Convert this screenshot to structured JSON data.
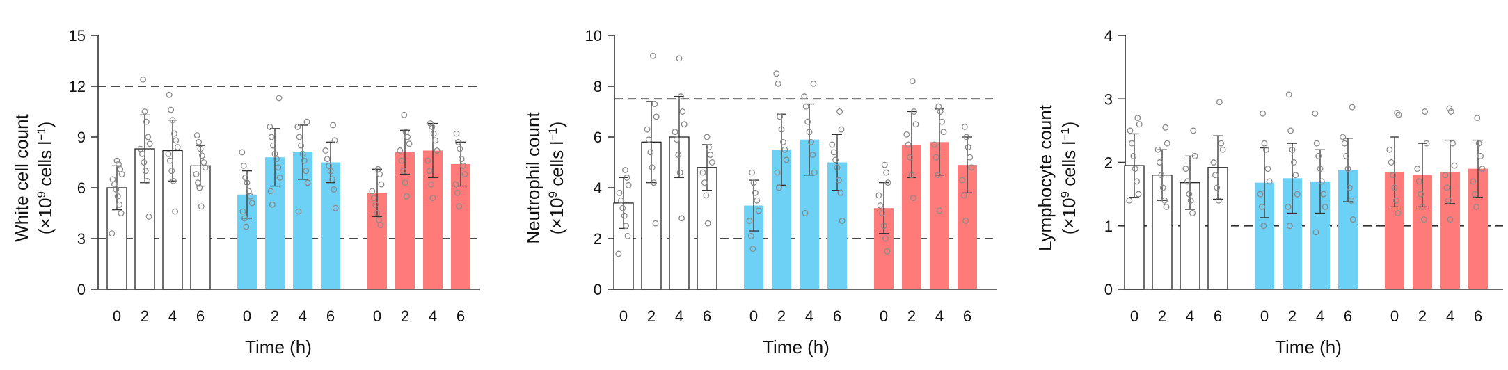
{
  "colors": {
    "control": "#ffffff",
    "control_stroke": "#222222",
    "blue": "#6dd0f5",
    "red": "#fe7b79",
    "point": "#8a8a8a",
    "axis": "#333333",
    "threshold": "#333333"
  },
  "chart_data": [
    {
      "type": "bar",
      "ylabel_line1": "White cell count",
      "ylabel_line2": "(×10",
      "ylabel_sup1": "9",
      "ylabel_mid": " cells l",
      "ylabel_sup2": "−1",
      "ylabel_end": ")",
      "xlabel": "Time (h)",
      "ylim": [
        0,
        15
      ],
      "yticks": [
        0,
        3,
        6,
        9,
        12,
        15
      ],
      "ytick_labels": [
        "0",
        "3",
        "6",
        "9",
        "12",
        "15"
      ],
      "thresholds": [
        12,
        3
      ],
      "groups": [
        {
          "color": "control",
          "bars": [
            {
              "x": "0",
              "mean": 6.0,
              "sd": 1.3,
              "points": [
                3.3,
                4.5,
                5.0,
                5.5,
                5.9,
                6.2,
                6.5,
                6.8,
                7.1,
                7.4,
                7.6
              ]
            },
            {
              "x": "2",
              "mean": 8.3,
              "sd": 2.0,
              "points": [
                4.3,
                6.4,
                7.0,
                7.5,
                8.0,
                8.3,
                8.6,
                9.0,
                9.9,
                10.5,
                12.4
              ]
            },
            {
              "x": "4",
              "mean": 8.2,
              "sd": 1.8,
              "points": [
                4.6,
                6.4,
                7.0,
                7.6,
                8.0,
                8.4,
                8.8,
                9.2,
                10.0,
                10.6,
                11.5
              ]
            },
            {
              "x": "6",
              "mean": 7.3,
              "sd": 1.2,
              "points": [
                4.9,
                6.0,
                6.3,
                6.8,
                7.2,
                7.5,
                7.9,
                8.3,
                8.7,
                9.1
              ]
            }
          ]
        },
        {
          "color": "blue",
          "bars": [
            {
              "x": "0",
              "mean": 5.6,
              "sd": 1.4,
              "points": [
                3.7,
                4.2,
                4.6,
                5.1,
                5.5,
                5.8,
                6.3,
                6.6,
                7.3,
                8.1
              ]
            },
            {
              "x": "2",
              "mean": 7.8,
              "sd": 1.7,
              "points": [
                5.0,
                5.8,
                6.6,
                7.2,
                7.7,
                8.0,
                8.5,
                9.0,
                9.6,
                11.3
              ]
            },
            {
              "x": "4",
              "mean": 8.1,
              "sd": 1.6,
              "points": [
                4.6,
                6.3,
                7.0,
                7.6,
                8.0,
                8.5,
                9.0,
                9.6,
                9.9
              ]
            },
            {
              "x": "6",
              "mean": 7.5,
              "sd": 1.2,
              "points": [
                4.8,
                5.9,
                6.5,
                7.0,
                7.3,
                7.7,
                8.2,
                8.8,
                9.7
              ]
            }
          ]
        },
        {
          "color": "red",
          "bars": [
            {
              "x": "0",
              "mean": 5.7,
              "sd": 1.4,
              "points": [
                3.8,
                4.1,
                4.5,
                5.0,
                5.4,
                5.8,
                6.2,
                6.8,
                7.1
              ]
            },
            {
              "x": "2",
              "mean": 8.1,
              "sd": 1.3,
              "points": [
                5.5,
                6.3,
                7.0,
                7.6,
                8.2,
                8.6,
                9.0,
                9.3,
                10.3
              ]
            },
            {
              "x": "4",
              "mean": 8.2,
              "sd": 1.6,
              "points": [
                5.4,
                6.2,
                7.0,
                7.6,
                8.2,
                8.8,
                9.2,
                9.6,
                9.8
              ]
            },
            {
              "x": "6",
              "mean": 7.4,
              "sd": 1.3,
              "points": [
                4.9,
                5.7,
                6.2,
                6.8,
                7.3,
                7.7,
                8.3,
                8.7,
                9.2
              ]
            }
          ]
        }
      ]
    },
    {
      "type": "bar",
      "ylabel_line1": "Neutrophil count",
      "ylabel_line2": "(×10",
      "ylabel_sup1": "9",
      "ylabel_mid": " cells l",
      "ylabel_sup2": "−1",
      "ylabel_end": ")",
      "xlabel": "Time (h)",
      "ylim": [
        0,
        10
      ],
      "yticks": [
        0,
        2,
        4,
        6,
        8,
        10
      ],
      "ytick_labels": [
        "0",
        "2",
        "4",
        "6",
        "8",
        "10"
      ],
      "thresholds": [
        7.5,
        2
      ],
      "groups": [
        {
          "color": "control",
          "bars": [
            {
              "x": "0",
              "mean": 3.4,
              "sd": 1.0,
              "points": [
                1.4,
                2.1,
                2.5,
                2.9,
                3.2,
                3.5,
                3.8,
                4.1,
                4.4,
                4.7
              ]
            },
            {
              "x": "2",
              "mean": 5.8,
              "sd": 1.6,
              "points": [
                2.6,
                4.2,
                4.8,
                5.4,
                5.9,
                6.3,
                6.8,
                7.3,
                9.2
              ]
            },
            {
              "x": "4",
              "mean": 6.0,
              "sd": 1.6,
              "points": [
                2.8,
                4.6,
                5.3,
                5.9,
                6.2,
                6.5,
                7.0,
                7.6,
                9.1
              ]
            },
            {
              "x": "6",
              "mean": 4.8,
              "sd": 0.9,
              "points": [
                2.6,
                3.7,
                4.2,
                4.6,
                5.0,
                5.3,
                5.6,
                6.0
              ]
            }
          ]
        },
        {
          "color": "blue",
          "bars": [
            {
              "x": "0",
              "mean": 3.3,
              "sd": 1.0,
              "points": [
                1.6,
                2.1,
                2.7,
                3.1,
                3.5,
                3.8,
                4.2,
                4.6
              ]
            },
            {
              "x": "2",
              "mean": 5.5,
              "sd": 1.4,
              "points": [
                4.0,
                4.6,
                5.1,
                5.5,
                5.8,
                6.3,
                6.8,
                8.1,
                8.5
              ]
            },
            {
              "x": "4",
              "mean": 5.9,
              "sd": 1.4,
              "points": [
                3.0,
                4.6,
                5.3,
                5.8,
                6.2,
                6.6,
                7.2,
                7.6,
                8.1
              ]
            },
            {
              "x": "6",
              "mean": 5.0,
              "sd": 1.1,
              "points": [
                2.7,
                3.8,
                4.3,
                4.8,
                5.1,
                5.4,
                5.7,
                6.3,
                7.0
              ]
            }
          ]
        },
        {
          "color": "red",
          "bars": [
            {
              "x": "0",
              "mean": 3.2,
              "sd": 1.0,
              "points": [
                1.5,
                2.0,
                2.5,
                3.0,
                3.3,
                3.7,
                4.2,
                4.6,
                4.9
              ]
            },
            {
              "x": "2",
              "mean": 5.7,
              "sd": 1.3,
              "points": [
                3.6,
                4.5,
                5.2,
                5.7,
                6.1,
                6.5,
                7.0,
                8.2
              ]
            },
            {
              "x": "4",
              "mean": 5.8,
              "sd": 1.3,
              "points": [
                3.1,
                4.5,
                5.2,
                5.7,
                6.2,
                6.6,
                7.0,
                7.2
              ]
            },
            {
              "x": "6",
              "mean": 4.9,
              "sd": 1.1,
              "points": [
                2.7,
                3.7,
                4.3,
                4.8,
                5.2,
                5.6,
                6.0,
                6.4
              ]
            }
          ]
        }
      ]
    },
    {
      "type": "bar",
      "ylabel_line1": "Lymphocyte count",
      "ylabel_line2": "(×10",
      "ylabel_sup1": "9",
      "ylabel_mid": " cells l",
      "ylabel_sup2": "−1",
      "ylabel_end": ")",
      "xlabel": "Time (h)",
      "ylim": [
        0,
        4
      ],
      "yticks": [
        0,
        1,
        2,
        3,
        4
      ],
      "ytick_labels": [
        "0",
        "1",
        "2",
        "3",
        "4"
      ],
      "thresholds": [
        1
      ],
      "groups": [
        {
          "color": "control",
          "bars": [
            {
              "x": "0",
              "mean": 1.95,
              "sd": 0.5,
              "points": [
                1.4,
                1.5,
                1.7,
                1.9,
                2.1,
                2.3,
                2.5,
                2.6,
                2.7
              ]
            },
            {
              "x": "2",
              "mean": 1.8,
              "sd": 0.4,
              "points": [
                1.3,
                1.4,
                1.6,
                1.8,
                2.0,
                2.2,
                2.3,
                2.55
              ]
            },
            {
              "x": "4",
              "mean": 1.68,
              "sd": 0.42,
              "points": [
                1.2,
                1.4,
                1.5,
                1.7,
                1.9,
                2.1,
                2.5
              ]
            },
            {
              "x": "6",
              "mean": 1.92,
              "sd": 0.5,
              "points": [
                1.4,
                1.6,
                1.8,
                2.0,
                2.2,
                2.3,
                2.95
              ]
            }
          ]
        },
        {
          "color": "blue",
          "bars": [
            {
              "x": "0",
              "mean": 1.68,
              "sd": 0.55,
              "points": [
                1.0,
                1.3,
                1.5,
                1.7,
                1.9,
                2.2,
                2.3,
                2.77
              ]
            },
            {
              "x": "2",
              "mean": 1.75,
              "sd": 0.55,
              "points": [
                1.0,
                1.3,
                1.5,
                1.8,
                2.0,
                2.2,
                2.5,
                3.07
              ]
            },
            {
              "x": "4",
              "mean": 1.7,
              "sd": 0.5,
              "points": [
                0.9,
                1.3,
                1.5,
                1.7,
                1.9,
                2.1,
                2.3,
                2.77
              ]
            },
            {
              "x": "6",
              "mean": 1.88,
              "sd": 0.5,
              "points": [
                1.1,
                1.4,
                1.6,
                1.9,
                2.1,
                2.3,
                2.4,
                2.87
              ]
            }
          ]
        },
        {
          "color": "red",
          "bars": [
            {
              "x": "0",
              "mean": 1.85,
              "sd": 0.55,
              "points": [
                1.2,
                1.4,
                1.6,
                1.8,
                2.0,
                2.2,
                2.75,
                2.78
              ]
            },
            {
              "x": "2",
              "mean": 1.8,
              "sd": 0.5,
              "points": [
                1.1,
                1.3,
                1.5,
                1.7,
                1.9,
                2.3,
                2.8
              ]
            },
            {
              "x": "4",
              "mean": 1.85,
              "sd": 0.5,
              "points": [
                1.1,
                1.4,
                1.6,
                1.8,
                1.95,
                2.3,
                2.8,
                2.85
              ]
            },
            {
              "x": "6",
              "mean": 1.9,
              "sd": 0.45,
              "points": [
                1.3,
                1.5,
                1.7,
                1.9,
                2.1,
                2.3,
                2.7
              ]
            }
          ]
        }
      ]
    }
  ]
}
